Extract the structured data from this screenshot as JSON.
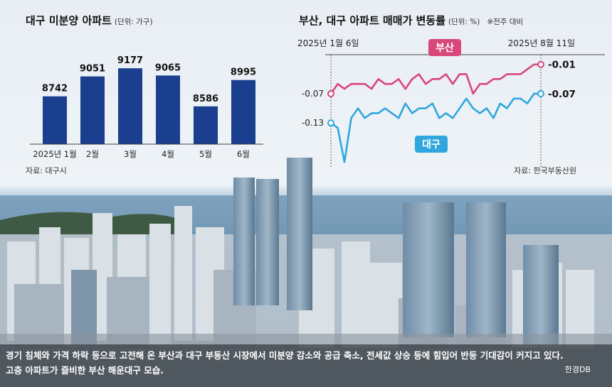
{
  "caption": {
    "line1": "경기 침체와 가격 하락 등으로 고전해 온 부산과 대구 부동산 시장에서 미분양 감소와 공급 축소, 전세값 상승 등에 힘입어 반등 기대감이 커지고 있다.",
    "line2": "고층 아파트가 즐비한 부산 해운대구 모습.",
    "credit": "한경DB"
  },
  "colors": {
    "bar": "#1a3f8f",
    "busan": "#d9467a",
    "daegu": "#2fa6dd"
  },
  "chart_data": [
    {
      "type": "bar",
      "title": "대구 미분양 아파트",
      "unit": "(단위: 가구)",
      "categories": [
        "2025년 1월",
        "2월",
        "3월",
        "4월",
        "5월",
        "6월"
      ],
      "values": [
        8742,
        9051,
        9177,
        9065,
        8586,
        8995
      ],
      "source": "자료: 대구시",
      "ylim": [
        8000,
        9300
      ],
      "legend": "none"
    },
    {
      "type": "line",
      "title": "부산, 대구 아파트 매매가 변동률",
      "unit": "(단위: %)",
      "note": "※전주 대비",
      "x_start_label": "2025년 1월 6일",
      "x_end_label": "2025년 8월 11일",
      "ylim": [
        -0.22,
        0.01
      ],
      "series": [
        {
          "name": "부산",
          "start_label": "-0.07",
          "end_label": "-0.01",
          "values": [
            -0.07,
            -0.05,
            -0.06,
            -0.05,
            -0.05,
            -0.05,
            -0.06,
            -0.04,
            -0.05,
            -0.05,
            -0.04,
            -0.06,
            -0.04,
            -0.03,
            -0.05,
            -0.04,
            -0.04,
            -0.03,
            -0.05,
            -0.03,
            -0.03,
            -0.07,
            -0.05,
            -0.05,
            -0.04,
            -0.04,
            -0.03,
            -0.03,
            -0.03,
            -0.02,
            -0.01,
            -0.01
          ]
        },
        {
          "name": "대구",
          "start_label": "-0.13",
          "end_label": "-0.07",
          "values": [
            -0.13,
            -0.14,
            -0.21,
            -0.12,
            -0.1,
            -0.12,
            -0.11,
            -0.11,
            -0.1,
            -0.11,
            -0.12,
            -0.09,
            -0.11,
            -0.1,
            -0.1,
            -0.09,
            -0.12,
            -0.11,
            -0.12,
            -0.1,
            -0.08,
            -0.1,
            -0.11,
            -0.1,
            -0.12,
            -0.09,
            -0.1,
            -0.08,
            -0.08,
            -0.09,
            -0.07,
            -0.07
          ]
        }
      ],
      "source": "자료: 한국부동산원"
    }
  ]
}
